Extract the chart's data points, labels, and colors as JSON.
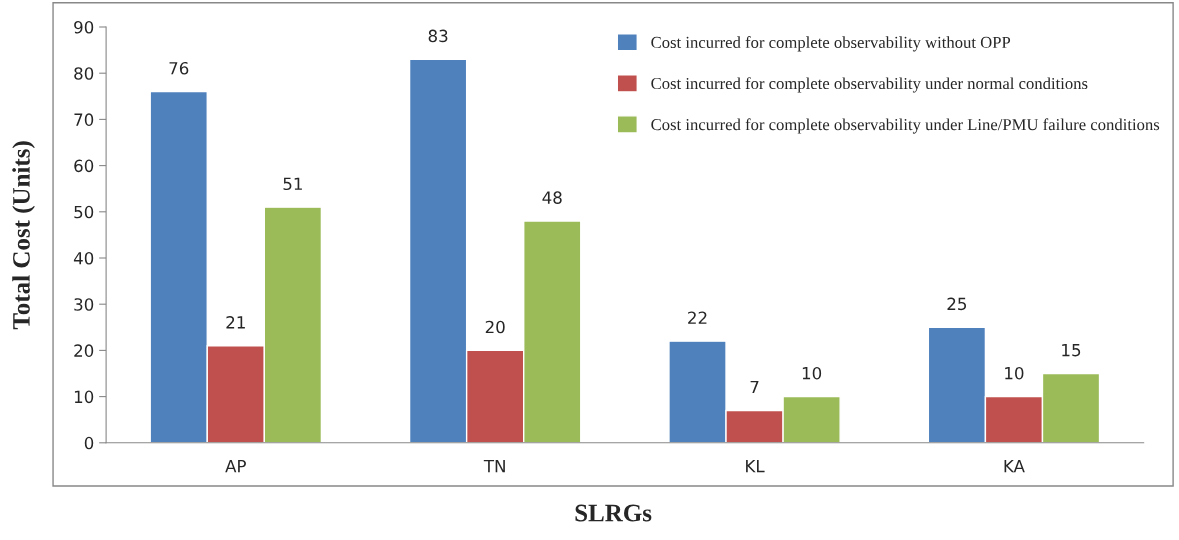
{
  "chart_data": {
    "type": "bar",
    "xlabel": "SLRGs",
    "ylabel": "Total Cost (Units)",
    "categories": [
      "AP",
      "TN",
      "KL",
      "KA"
    ],
    "series": [
      {
        "name": "Cost incurred for complete observability without OPP",
        "color": "#4f81bd",
        "values": [
          76,
          83,
          22,
          25
        ]
      },
      {
        "name": "Cost incurred for complete observability under normal conditions",
        "color": "#c0504d",
        "values": [
          21,
          20,
          7,
          10
        ]
      },
      {
        "name": "Cost incurred for complete observability under Line/PMU failure conditions",
        "color": "#9bbb59",
        "values": [
          51,
          48,
          10,
          15
        ]
      }
    ],
    "ylim": [
      0,
      90
    ],
    "yticks": [
      0,
      10,
      20,
      30,
      40,
      50,
      60,
      70,
      80,
      90
    ],
    "data_labels": true,
    "grid": false,
    "legend": "top right"
  }
}
